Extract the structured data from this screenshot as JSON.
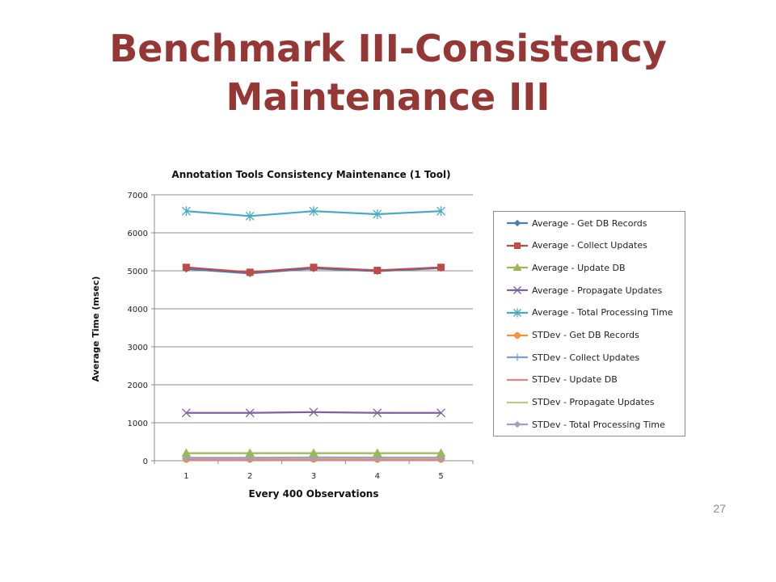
{
  "slide": {
    "title_line1": "Benchmark III-Consistency",
    "title_line2": "Maintenance III",
    "page_number": "27"
  },
  "chart_data": {
    "type": "line",
    "title": "Annotation Tools Consistency Maintenance (1 Tool)",
    "xlabel": "Every 400 Observations",
    "ylabel": "Average Time (msec)",
    "categories": [
      "1",
      "2",
      "3",
      "4",
      "5"
    ],
    "ylim": [
      0,
      7000
    ],
    "yticks": [
      0,
      1000,
      2000,
      3000,
      4000,
      5000,
      6000,
      7000
    ],
    "grid": true,
    "legend_position": "right",
    "series": [
      {
        "name": "Average - Get DB Records",
        "values": [
          5050,
          4930,
          5060,
          4990,
          5070
        ],
        "color": "#4a7ebb",
        "marker": "diamond"
      },
      {
        "name": "Average - Collect Updates",
        "values": [
          5090,
          4960,
          5090,
          5010,
          5090
        ],
        "color": "#be4b48",
        "marker": "square"
      },
      {
        "name": "Average - Update DB",
        "values": [
          200,
          200,
          200,
          200,
          200
        ],
        "color": "#98b954",
        "marker": "triangle"
      },
      {
        "name": "Average - Propagate Updates",
        "values": [
          1260,
          1260,
          1280,
          1260,
          1260
        ],
        "color": "#7d60a0",
        "marker": "x"
      },
      {
        "name": "Average - Total Processing Time",
        "values": [
          6570,
          6440,
          6570,
          6490,
          6570
        ],
        "color": "#46aac5",
        "marker": "star"
      },
      {
        "name": "STDev - Get DB Records",
        "values": [
          40,
          40,
          45,
          40,
          40
        ],
        "color": "#f69240",
        "marker": "circle"
      },
      {
        "name": "STDev - Collect Updates",
        "values": [
          60,
          60,
          65,
          60,
          60
        ],
        "color": "#7f9fd3",
        "marker": "plus"
      },
      {
        "name": "STDev - Update DB",
        "values": [
          20,
          20,
          20,
          20,
          20
        ],
        "color": "#e18583",
        "marker": "none"
      },
      {
        "name": "STDev - Propagate Updates",
        "values": [
          70,
          70,
          75,
          70,
          70
        ],
        "color": "#b3ce86",
        "marker": "none"
      },
      {
        "name": "STDev - Total Processing Time",
        "values": [
          80,
          80,
          90,
          85,
          85
        ],
        "color": "#a99bbd",
        "marker": "diamond"
      }
    ]
  }
}
